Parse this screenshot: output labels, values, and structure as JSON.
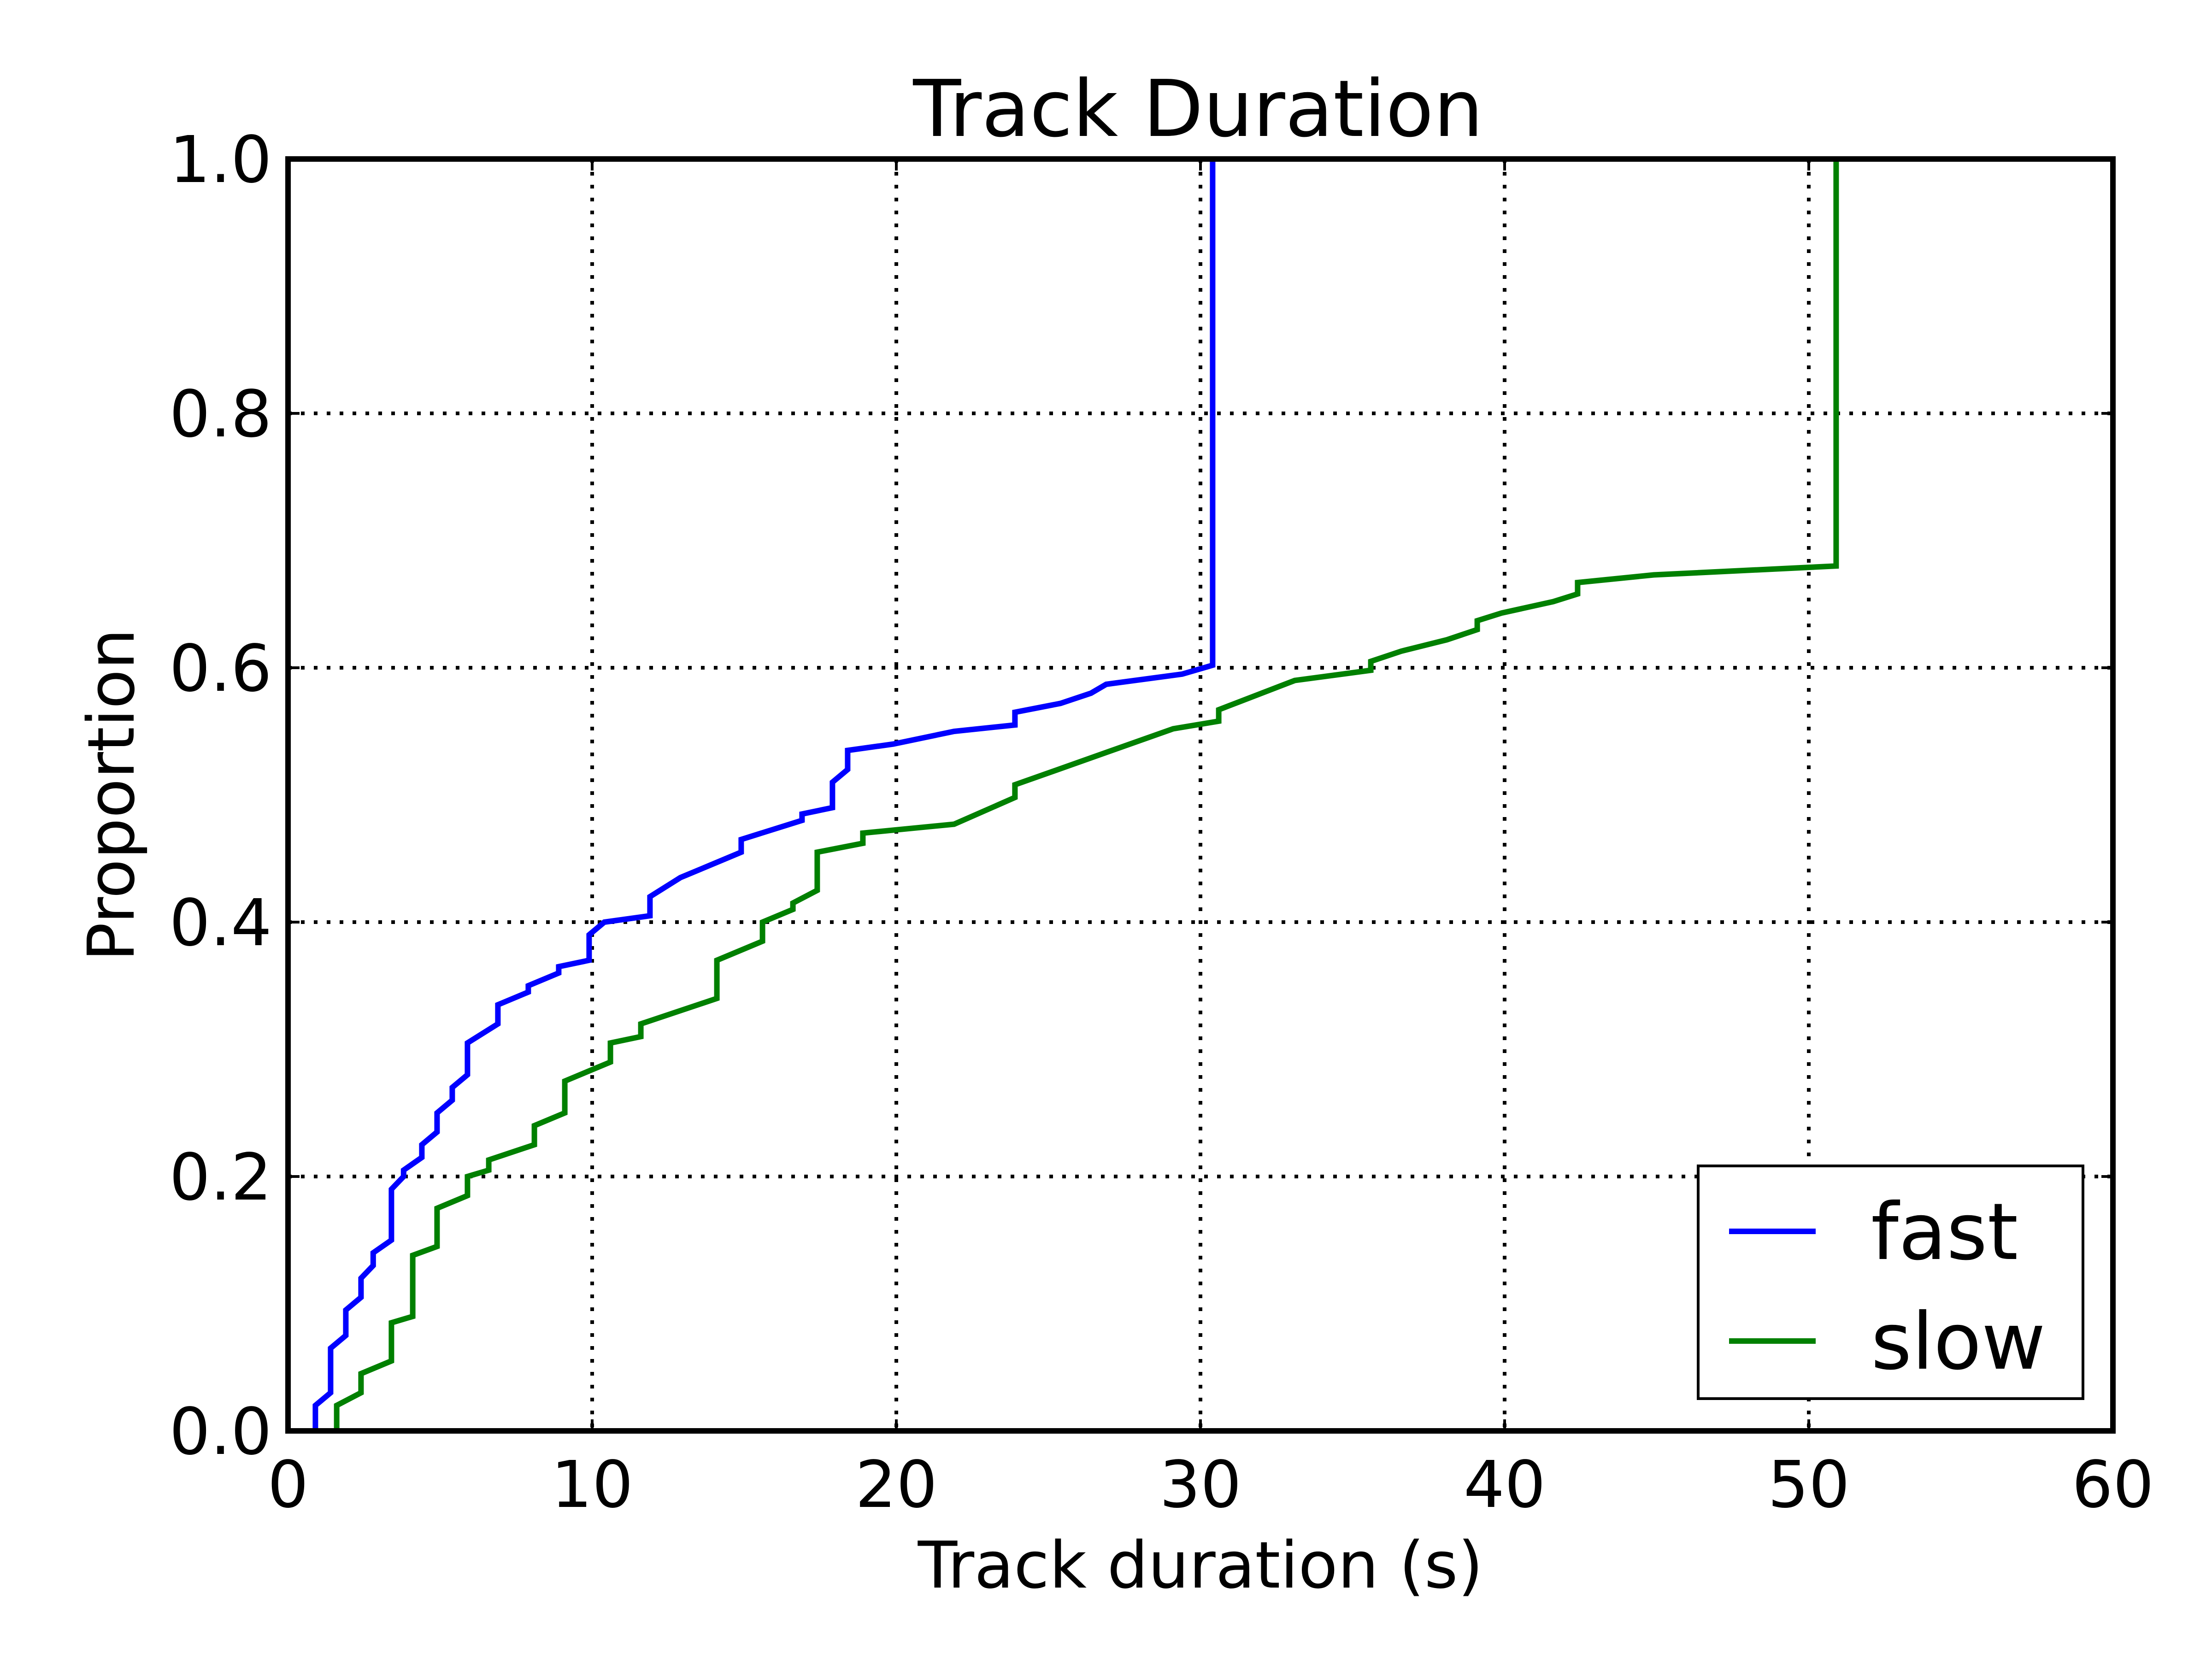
{
  "chart_data": {
    "type": "line",
    "title": "Track Duration",
    "xlabel": "Track duration (s)",
    "ylabel": "Proportion",
    "xlim": [
      0,
      60
    ],
    "ylim": [
      0.0,
      1.0
    ],
    "xticks": [
      0,
      10,
      20,
      30,
      40,
      50,
      60
    ],
    "xtick_labels": [
      "0",
      "10",
      "20",
      "30",
      "40",
      "50",
      "60"
    ],
    "yticks": [
      0.0,
      0.2,
      0.4,
      0.6,
      0.8,
      1.0
    ],
    "ytick_labels": [
      "0.0",
      "0.2",
      "0.4",
      "0.6",
      "0.8",
      "1.0"
    ],
    "grid": true,
    "legend_position": "lower-right",
    "series": [
      {
        "name": "fast",
        "color": "#0000ff",
        "points": [
          [
            0.9,
            0.0
          ],
          [
            0.9,
            0.02
          ],
          [
            1.4,
            0.03
          ],
          [
            1.4,
            0.065
          ],
          [
            1.9,
            0.075
          ],
          [
            1.9,
            0.095
          ],
          [
            2.4,
            0.105
          ],
          [
            2.4,
            0.12
          ],
          [
            2.8,
            0.13
          ],
          [
            2.8,
            0.14
          ],
          [
            3.4,
            0.15
          ],
          [
            3.4,
            0.19
          ],
          [
            3.8,
            0.2
          ],
          [
            3.8,
            0.205
          ],
          [
            4.4,
            0.215
          ],
          [
            4.4,
            0.225
          ],
          [
            4.9,
            0.235
          ],
          [
            4.9,
            0.25
          ],
          [
            5.4,
            0.26
          ],
          [
            5.4,
            0.27
          ],
          [
            5.9,
            0.28
          ],
          [
            5.9,
            0.305
          ],
          [
            6.9,
            0.32
          ],
          [
            6.9,
            0.335
          ],
          [
            7.9,
            0.345
          ],
          [
            7.9,
            0.35
          ],
          [
            8.9,
            0.36
          ],
          [
            8.9,
            0.365
          ],
          [
            9.9,
            0.37
          ],
          [
            9.9,
            0.39
          ],
          [
            10.4,
            0.4
          ],
          [
            11.9,
            0.405
          ],
          [
            11.9,
            0.42
          ],
          [
            12.9,
            0.435
          ],
          [
            13.9,
            0.445
          ],
          [
            14.9,
            0.455
          ],
          [
            14.9,
            0.465
          ],
          [
            16.9,
            0.48
          ],
          [
            16.9,
            0.485
          ],
          [
            17.9,
            0.49
          ],
          [
            17.9,
            0.51
          ],
          [
            18.4,
            0.52
          ],
          [
            18.4,
            0.535
          ],
          [
            19.9,
            0.54
          ],
          [
            21.9,
            0.55
          ],
          [
            23.9,
            0.555
          ],
          [
            23.9,
            0.565
          ],
          [
            25.4,
            0.572
          ],
          [
            26.4,
            0.58
          ],
          [
            26.9,
            0.587
          ],
          [
            29.4,
            0.595
          ],
          [
            30.4,
            0.602
          ],
          [
            30.4,
            1.0
          ]
        ]
      },
      {
        "name": "slow",
        "color": "#008000",
        "points": [
          [
            1.6,
            0.0
          ],
          [
            1.6,
            0.02
          ],
          [
            2.4,
            0.03
          ],
          [
            2.4,
            0.045
          ],
          [
            3.4,
            0.055
          ],
          [
            3.4,
            0.085
          ],
          [
            4.1,
            0.09
          ],
          [
            4.1,
            0.138
          ],
          [
            4.9,
            0.145
          ],
          [
            4.9,
            0.175
          ],
          [
            5.9,
            0.185
          ],
          [
            5.9,
            0.2
          ],
          [
            6.6,
            0.205
          ],
          [
            6.6,
            0.213
          ],
          [
            8.1,
            0.225
          ],
          [
            8.1,
            0.24
          ],
          [
            9.1,
            0.25
          ],
          [
            9.1,
            0.275
          ],
          [
            10.6,
            0.29
          ],
          [
            10.6,
            0.305
          ],
          [
            11.6,
            0.31
          ],
          [
            11.6,
            0.32
          ],
          [
            14.1,
            0.34
          ],
          [
            14.1,
            0.37
          ],
          [
            15.6,
            0.385
          ],
          [
            15.6,
            0.4
          ],
          [
            16.6,
            0.41
          ],
          [
            16.6,
            0.415
          ],
          [
            17.4,
            0.425
          ],
          [
            17.4,
            0.455
          ],
          [
            18.9,
            0.462
          ],
          [
            18.9,
            0.47
          ],
          [
            21.9,
            0.477
          ],
          [
            23.9,
            0.498
          ],
          [
            23.9,
            0.508
          ],
          [
            29.1,
            0.552
          ],
          [
            30.6,
            0.558
          ],
          [
            30.6,
            0.567
          ],
          [
            33.1,
            0.59
          ],
          [
            35.6,
            0.598
          ],
          [
            35.6,
            0.605
          ],
          [
            36.6,
            0.613
          ],
          [
            38.1,
            0.622
          ],
          [
            39.1,
            0.63
          ],
          [
            39.1,
            0.637
          ],
          [
            39.9,
            0.643
          ],
          [
            41.6,
            0.652
          ],
          [
            42.4,
            0.658
          ],
          [
            42.4,
            0.667
          ],
          [
            44.9,
            0.673
          ],
          [
            50.9,
            0.68
          ],
          [
            50.9,
            1.0
          ]
        ]
      }
    ]
  }
}
